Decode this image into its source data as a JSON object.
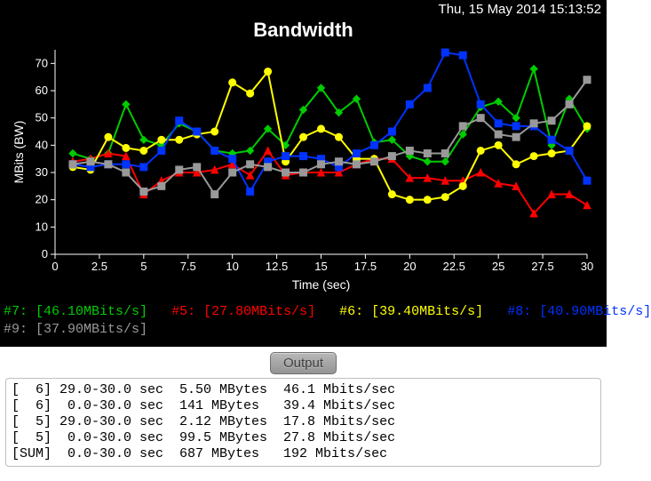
{
  "timestamp": "Thu, 15 May 2014 15:13:52",
  "chart": {
    "type": "line",
    "title": "Bandwidth",
    "xlabel": "Time (sec)",
    "ylabel": "MBits (BW)",
    "background_color": "#000000",
    "axis_color": "#ffffff",
    "grid_color": "#555555",
    "tick_fontsize": 13,
    "label_fontsize": 14,
    "xlim": [
      0,
      30
    ],
    "ylim": [
      0,
      75
    ],
    "xtick_step": 2.5,
    "ytick_step": 10,
    "marker_size": 4,
    "line_width": 2,
    "series": [
      {
        "id": "7",
        "color": "#00cc00",
        "marker": "diamond",
        "x": [
          1,
          2,
          3,
          4,
          5,
          6,
          7,
          8,
          9,
          10,
          11,
          12,
          13,
          14,
          15,
          16,
          17,
          18,
          19,
          20,
          21,
          22,
          23,
          24,
          25,
          26,
          27,
          28,
          29,
          30
        ],
        "y": [
          37,
          35,
          37,
          55,
          42,
          40,
          48,
          45,
          38,
          37,
          38,
          46,
          40,
          53,
          61,
          52,
          57,
          41,
          42,
          36,
          34,
          34,
          44,
          54,
          56,
          50,
          68,
          40,
          57,
          46
        ]
      },
      {
        "id": "5",
        "color": "#ff0000",
        "marker": "triangle",
        "x": [
          1,
          2,
          3,
          4,
          5,
          6,
          7,
          8,
          9,
          10,
          11,
          12,
          13,
          14,
          15,
          16,
          17,
          18,
          19,
          20,
          21,
          22,
          23,
          24,
          25,
          26,
          27,
          28,
          29,
          30
        ],
        "y": [
          34,
          35,
          37,
          36,
          22,
          27,
          30,
          30,
          31,
          33,
          29,
          38,
          29,
          30,
          30,
          30,
          33,
          35,
          35,
          28,
          28,
          27,
          27,
          30,
          26,
          25,
          15,
          22,
          22,
          18
        ]
      },
      {
        "id": "6",
        "color": "#ffff00",
        "marker": "circle",
        "x": [
          1,
          2,
          3,
          4,
          5,
          6,
          7,
          8,
          9,
          10,
          11,
          12,
          13,
          14,
          15,
          16,
          17,
          18,
          19,
          20,
          21,
          22,
          23,
          24,
          25,
          26,
          27,
          28,
          29,
          30
        ],
        "y": [
          32,
          31,
          43,
          39,
          38,
          42,
          42,
          44,
          45,
          63,
          59,
          67,
          34,
          43,
          46,
          43,
          35,
          35,
          22,
          20,
          20,
          21,
          25,
          38,
          40,
          33,
          36,
          37,
          38,
          47
        ]
      },
      {
        "id": "8",
        "color": "#0033ff",
        "marker": "square",
        "x": [
          1,
          2,
          3,
          4,
          5,
          6,
          7,
          8,
          9,
          10,
          11,
          12,
          13,
          14,
          15,
          16,
          17,
          18,
          19,
          20,
          21,
          22,
          23,
          24,
          25,
          26,
          27,
          28,
          29,
          30
        ],
        "y": [
          33,
          32,
          33,
          33,
          32,
          38,
          49,
          45,
          38,
          35,
          23,
          34,
          36,
          36,
          35,
          32,
          37,
          40,
          45,
          55,
          61,
          74,
          73,
          55,
          48,
          47,
          47,
          42,
          38,
          27
        ]
      },
      {
        "id": "9",
        "color": "#999999",
        "marker": "square",
        "x": [
          1,
          2,
          3,
          4,
          5,
          6,
          7,
          8,
          9,
          10,
          11,
          12,
          13,
          14,
          15,
          16,
          17,
          18,
          19,
          20,
          21,
          22,
          23,
          24,
          25,
          26,
          27,
          28,
          29,
          30
        ],
        "y": [
          33,
          34,
          33,
          30,
          23,
          25,
          31,
          32,
          22,
          30,
          33,
          32,
          30,
          30,
          33,
          34,
          33,
          34,
          36,
          38,
          37,
          37,
          47,
          50,
          44,
          43,
          48,
          49,
          55,
          64
        ]
      }
    ]
  },
  "legend": [
    {
      "label": "#7:",
      "value": "[46.10MBits/s]",
      "color": "#00cc00"
    },
    {
      "label": "#5:",
      "value": "[27.80MBits/s]",
      "color": "#ff0000"
    },
    {
      "label": "#6:",
      "value": "[39.40MBits/s]",
      "color": "#ffff00"
    },
    {
      "label": "#8:",
      "value": "[40.90MBits/s]",
      "color": "#0033ff"
    },
    {
      "label": "#9:",
      "value": "[37.90MBits/s]",
      "color": "#999999"
    }
  ],
  "output_button": "Output",
  "output_lines": [
    "[  6] 29.0-30.0 sec  5.50 MBytes  46.1 Mbits/sec",
    "[  6]  0.0-30.0 sec  141 MBytes   39.4 Mbits/sec",
    "[  5] 29.0-30.0 sec  2.12 MBytes  17.8 Mbits/sec",
    "[  5]  0.0-30.0 sec  99.5 MBytes  27.8 Mbits/sec",
    "[SUM]  0.0-30.0 sec  687 MBytes   192 Mbits/sec"
  ]
}
